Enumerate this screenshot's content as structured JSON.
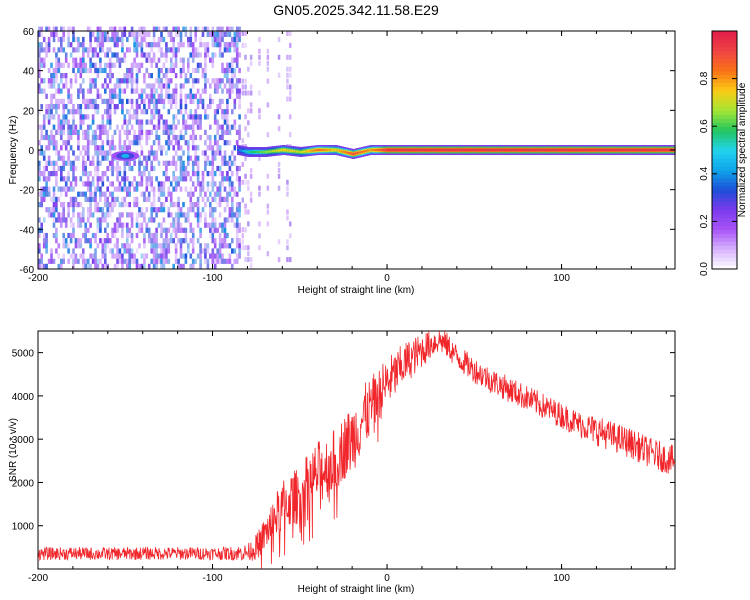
{
  "chart_data": [
    {
      "type": "heatmap",
      "title": "GN05.2025.342.11.58.E29",
      "xlabel": "Height of straight line (km)",
      "ylabel": "Frequency (Hz)",
      "xlim": [
        -200,
        165
      ],
      "ylim": [
        -60,
        60
      ],
      "xticks": [
        -200,
        -100,
        0,
        100
      ],
      "yticks": [
        -60,
        -40,
        -20,
        0,
        20,
        40,
        60
      ],
      "colorbar": {
        "label": "Normalized spectral amplitude",
        "range": [
          0,
          1
        ],
        "ticks": [
          0.0,
          0.2,
          0.4,
          0.6,
          0.8
        ],
        "colormap": [
          "#ffffff",
          "#d8b4fe",
          "#a855f7",
          "#7c3aed",
          "#1d4ed8",
          "#0ea5e9",
          "#22d3ee",
          "#22c55e",
          "#a3e635",
          "#facc15",
          "#f97316",
          "#ef4444",
          "#e11d48"
        ]
      },
      "noise_region": {
        "x_range": [
          -200,
          -85
        ],
        "level": "purple (0.2-0.4)"
      },
      "transition_region": {
        "x_range": [
          -85,
          -55
        ],
        "level": "sparse light purple"
      },
      "signal_band": [
        {
          "x": -86,
          "freq": 0,
          "amplitude": 0.35
        },
        {
          "x": -80,
          "freq": -1,
          "amplitude": 0.55
        },
        {
          "x": -70,
          "freq": -1,
          "amplitude": 0.65
        },
        {
          "x": -60,
          "freq": 0,
          "amplitude": 0.75
        },
        {
          "x": -50,
          "freq": -1,
          "amplitude": 0.7
        },
        {
          "x": -40,
          "freq": 0,
          "amplitude": 0.85
        },
        {
          "x": -30,
          "freq": 0,
          "amplitude": 0.75
        },
        {
          "x": -20,
          "freq": -2,
          "amplitude": 0.9
        },
        {
          "x": -10,
          "freq": 0,
          "amplitude": 0.8
        },
        {
          "x": 0,
          "freq": 0,
          "amplitude": 0.95
        },
        {
          "x": 50,
          "freq": 0,
          "amplitude": 0.95
        },
        {
          "x": 100,
          "freq": 0,
          "amplitude": 0.95
        },
        {
          "x": 165,
          "freq": 0,
          "amplitude": 0.95
        }
      ],
      "low_altitude_blob": {
        "x": -150,
        "freq": -3,
        "amplitude": 0.35
      }
    },
    {
      "type": "line",
      "xlabel": "Height of straight line (km)",
      "ylabel": "SNR (10 * v/v)",
      "xlim": [
        -200,
        165
      ],
      "ylim": [
        0,
        5500
      ],
      "xticks": [
        -200,
        -100,
        0,
        100
      ],
      "yticks": [
        1000,
        2000,
        3000,
        4000,
        5000
      ],
      "line_color": "#f0262b",
      "series": [
        {
          "x": [
            -200,
            -180,
            -160,
            -140,
            -120,
            -100,
            -90,
            -80,
            -75,
            -70,
            -65,
            -60,
            -55,
            -50,
            -45,
            -40,
            -35,
            -30,
            -25,
            -20,
            -15,
            -10,
            -5,
            0,
            5,
            10,
            15,
            20,
            25,
            30,
            35,
            40,
            50,
            60,
            70,
            80,
            90,
            100,
            110,
            120,
            130,
            140,
            150,
            160,
            165
          ],
          "y": [
            350,
            360,
            350,
            360,
            360,
            360,
            360,
            380,
            500,
            800,
            1150,
            1450,
            1600,
            1700,
            2000,
            2200,
            2350,
            2500,
            2800,
            3000,
            3400,
            3700,
            4000,
            4300,
            4500,
            4750,
            4900,
            5050,
            5200,
            5300,
            5150,
            4900,
            4600,
            4350,
            4150,
            3950,
            3750,
            3550,
            3350,
            3200,
            3050,
            2900,
            2700,
            2550,
            2500
          ],
          "noise_amplitude": [
            150,
            150,
            150,
            150,
            150,
            150,
            160,
            200,
            300,
            400,
            500,
            600,
            650,
            650,
            700,
            750,
            750,
            750,
            750,
            800,
            800,
            700,
            650,
            600,
            550,
            500,
            450,
            400,
            350,
            300,
            300,
            300,
            300,
            300,
            300,
            300,
            300,
            300,
            300,
            350,
            350,
            350,
            350,
            350,
            350
          ]
        }
      ]
    }
  ]
}
